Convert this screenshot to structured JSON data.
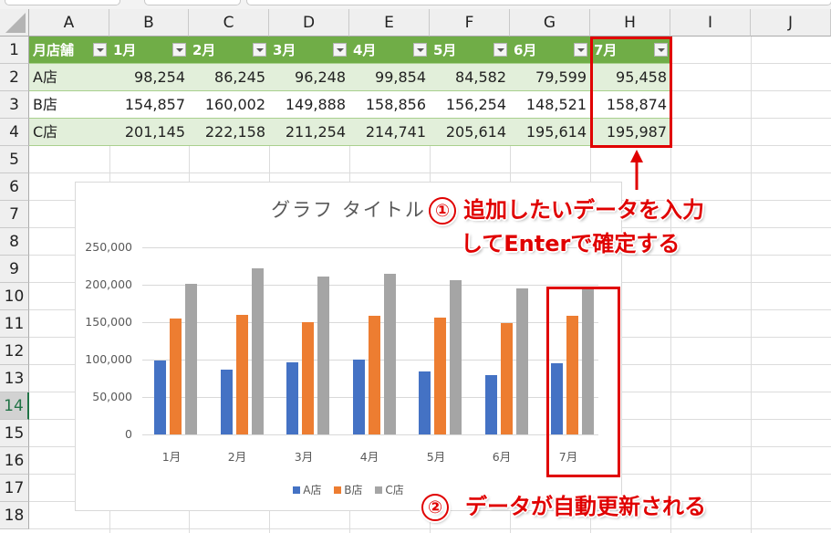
{
  "columns": [
    "A",
    "B",
    "C",
    "D",
    "E",
    "F",
    "G",
    "H",
    "I",
    "J"
  ],
  "rows": [
    "1",
    "2",
    "3",
    "4",
    "5",
    "6",
    "7",
    "8",
    "9",
    "10",
    "11",
    "12",
    "13",
    "14",
    "15",
    "16",
    "17",
    "18"
  ],
  "active_row": "14",
  "table": {
    "headers": [
      "月店舗",
      "1月",
      "2月",
      "3月",
      "4月",
      "5月",
      "6月",
      "7月"
    ],
    "rows": [
      {
        "label": "A店",
        "values": [
          "98,254",
          "86,245",
          "96,248",
          "99,854",
          "84,582",
          "79,599",
          "95,458"
        ]
      },
      {
        "label": "B店",
        "values": [
          "154,857",
          "160,002",
          "149,888",
          "158,856",
          "156,254",
          "148,521",
          "158,874"
        ]
      },
      {
        "label": "C店",
        "values": [
          "201,145",
          "222,158",
          "211,254",
          "214,741",
          "205,614",
          "195,614",
          "195,987"
        ]
      }
    ],
    "header_color": "#70ad47",
    "band_color": "#e2efda"
  },
  "chart_data": {
    "type": "bar",
    "title": "グラフ タイトル",
    "categories": [
      "1月",
      "2月",
      "3月",
      "4月",
      "5月",
      "6月",
      "7月"
    ],
    "series": [
      {
        "name": "A店",
        "color": "#4472c4",
        "values": [
          98254,
          86245,
          96248,
          99854,
          84582,
          79599,
          95458
        ]
      },
      {
        "name": "B店",
        "color": "#ed7d31",
        "values": [
          154857,
          160002,
          149888,
          158856,
          156254,
          148521,
          158874
        ]
      },
      {
        "name": "C店",
        "color": "#a5a5a5",
        "values": [
          201145,
          222158,
          211254,
          214741,
          205614,
          195614,
          195987
        ]
      }
    ],
    "yticks": [
      "250,000",
      "200,000",
      "150,000",
      "100,000",
      "50,000",
      "0"
    ],
    "ylim": [
      0,
      250000
    ],
    "xlabel": "",
    "ylabel": "",
    "grid": true,
    "legend_position": "bottom"
  },
  "annotations": {
    "step1_number": "①",
    "step1_line1": "追加したいデータを入力",
    "step1_line2": "してEnterで確定する",
    "step2_number": "②",
    "step2_text": "データが自動更新される",
    "highlight_color": "#e00000"
  }
}
